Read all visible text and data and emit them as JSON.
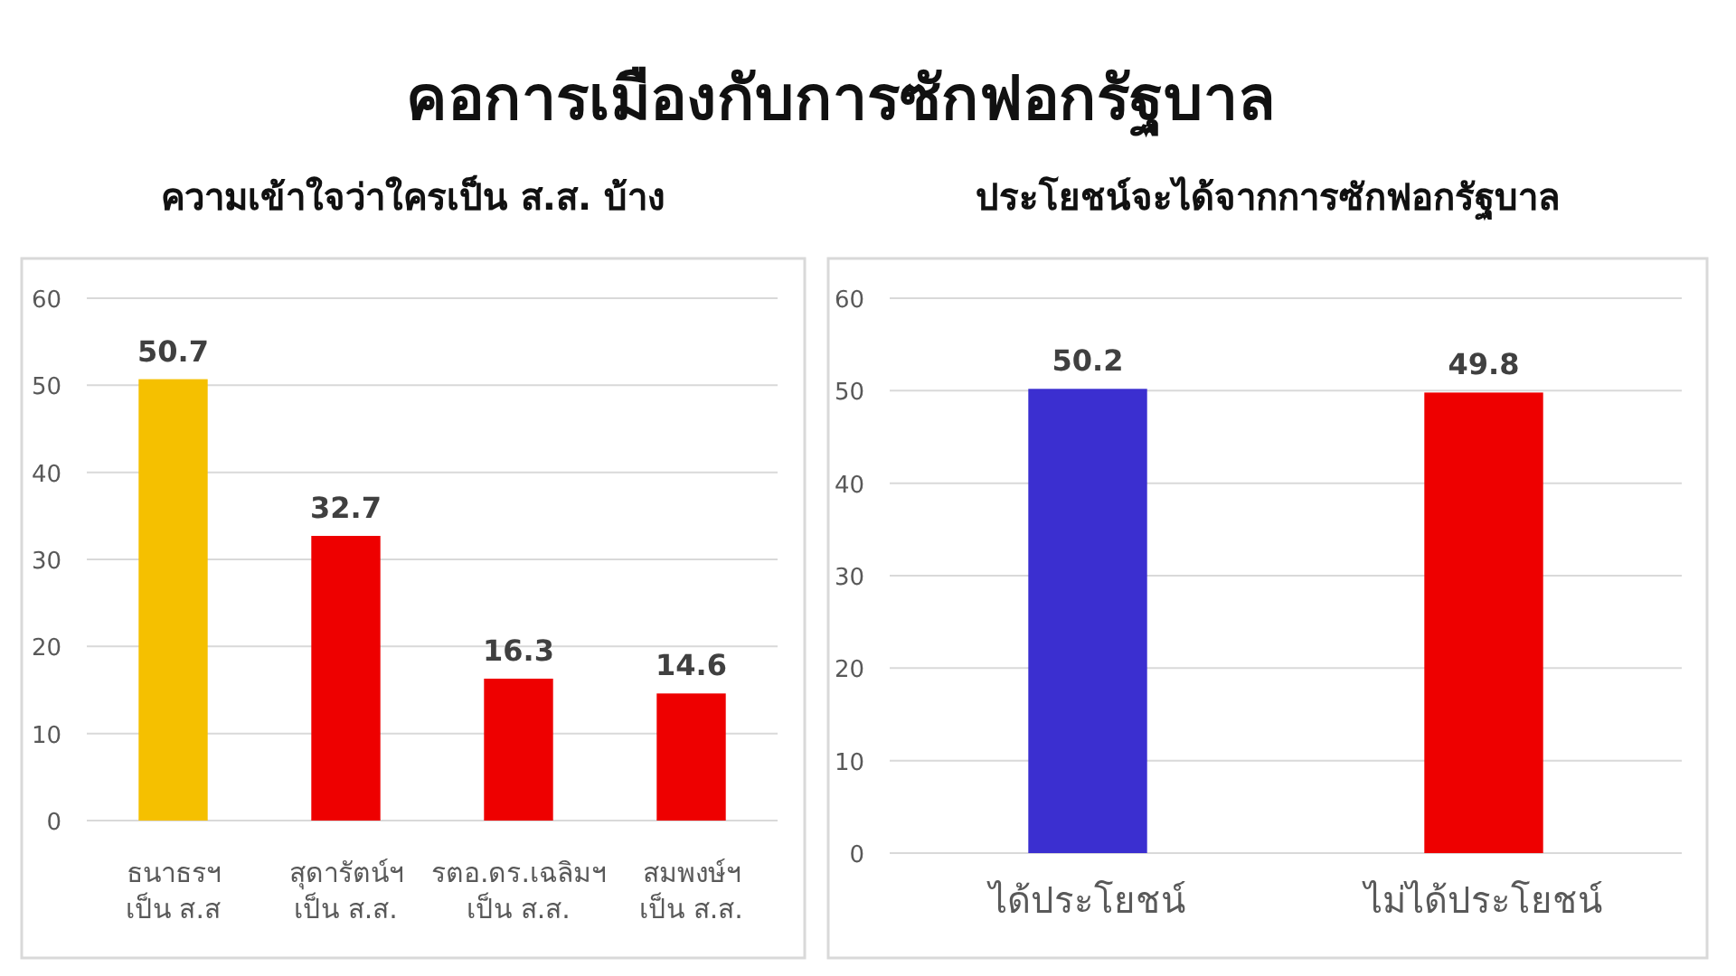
{
  "chart_data": [
    {
      "type": "bar",
      "title": "ความเข้าใจว่าใครเป็น ส.ส. บ้าง",
      "annotations": [
        "คอการเมืองกับการซักฟอกรัฐบาล"
      ],
      "categories": [
        "ธนาธรฯ\nเป็น ส.ส",
        "สุดารัตน์ฯ\nเป็น ส.ส.",
        "รตอ.ดร.เฉลิมฯ\nเป็น ส.ส.",
        "สมพงษ์ฯ\nเป็น ส.ส."
      ],
      "values": [
        50.7,
        32.7,
        16.3,
        14.6
      ],
      "colors": [
        "#f5c000",
        "#ee0000",
        "#ee0000",
        "#ee0000"
      ],
      "ylim": [
        0,
        60
      ],
      "yticks": [
        0,
        10,
        20,
        30,
        40,
        50,
        60
      ],
      "grid": "y",
      "data_labels": true
    },
    {
      "type": "bar",
      "title": "ประโยชน์จะได้จากการซักฟอกรัฐบาล",
      "categories": [
        "ได้ประโยชน์",
        "ไม่ได้ประโยชน์"
      ],
      "values": [
        50.2,
        49.8
      ],
      "colors": [
        "#3b2fd0",
        "#ee0000"
      ],
      "ylim": [
        0,
        60
      ],
      "yticks": [
        0,
        10,
        20,
        30,
        40,
        50,
        60
      ],
      "grid": "y",
      "data_labels": true
    }
  ]
}
